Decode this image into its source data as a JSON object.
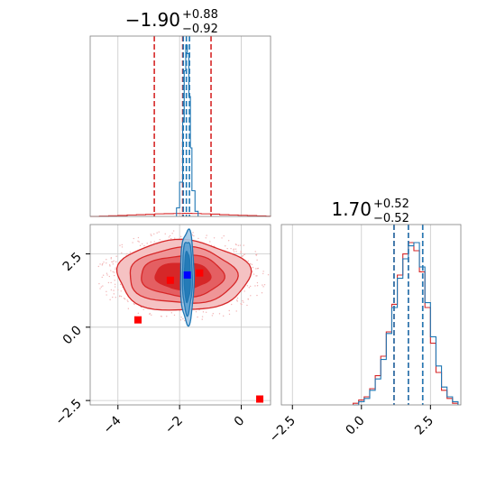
{
  "chart_data": [
    {
      "type": "histogram",
      "panel": "marginal-param-1",
      "title": {
        "median": "−1.90",
        "plus": "+0.88",
        "minus": "−0.92"
      },
      "xlim": [
        -4.9,
        0.95
      ],
      "gridlines_x": [
        -4,
        -2,
        0
      ],
      "series": [
        {
          "name": "",
          "color": "#d62728",
          "bins_x": [
            -4.9,
            -4.6,
            -4.3,
            -4.0,
            -3.7,
            -3.4,
            -3.1,
            -2.8,
            -2.5,
            -2.2,
            -1.9,
            -1.6,
            -1.3,
            -1.0,
            -0.7,
            -0.4,
            -0.1,
            0.2,
            0.5,
            0.8,
            0.95
          ],
          "heights": [
            0.0,
            0.01,
            0.02,
            0.03,
            0.045,
            0.055,
            0.065,
            0.08,
            0.085,
            0.09,
            0.095,
            0.09,
            0.08,
            0.07,
            0.055,
            0.045,
            0.035,
            0.025,
            0.015,
            0.005
          ],
          "quantile_lines": [
            -2.82,
            -1.9,
            -0.98
          ]
        },
        {
          "name": "",
          "color": "#1f77b4",
          "bins_x": [
            -2.1,
            -2.0,
            -1.9,
            -1.85,
            -1.8,
            -1.75,
            -1.7,
            -1.65,
            -1.6,
            -1.5,
            -1.4
          ],
          "heights": [
            0.05,
            0.2,
            0.55,
            0.85,
            1.0,
            0.95,
            0.7,
            0.4,
            0.15,
            0.03
          ],
          "quantile_lines": [
            -1.88,
            -1.78,
            -1.68
          ]
        }
      ]
    },
    {
      "type": "histogram",
      "panel": "marginal-param-2",
      "title": {
        "median": "1.70",
        "plus": "+0.52",
        "minus": "−0.52"
      },
      "xlim": [
        -2.9,
        3.6
      ],
      "xticks": [
        -2.5,
        0.0,
        2.5
      ],
      "xtick_labels": [
        "−2.5",
        "0.0",
        "2.5"
      ],
      "gridlines_x": [
        -2.5,
        0.0,
        2.5
      ],
      "series": [
        {
          "name": "",
          "color": "#d62728",
          "bins_x": [
            -0.3,
            -0.1,
            0.1,
            0.3,
            0.5,
            0.7,
            0.9,
            1.1,
            1.3,
            1.5,
            1.7,
            1.9,
            2.1,
            2.3,
            2.5,
            2.7,
            2.9,
            3.1,
            3.3,
            3.5
          ],
          "heights": [
            0.01,
            0.03,
            0.05,
            0.1,
            0.18,
            0.3,
            0.45,
            0.62,
            0.8,
            0.93,
            1.0,
            0.95,
            0.82,
            0.6,
            0.38,
            0.2,
            0.09,
            0.04,
            0.01
          ],
          "quantile_lines": [
            1.18,
            1.7,
            2.22
          ]
        },
        {
          "name": "",
          "color": "#1f77b4",
          "bins_x": [
            -0.3,
            -0.1,
            0.1,
            0.3,
            0.5,
            0.7,
            0.9,
            1.1,
            1.3,
            1.5,
            1.7,
            1.9,
            2.1,
            2.3,
            2.5,
            2.7,
            2.9,
            3.1,
            3.3,
            3.5
          ],
          "heights": [
            0.0,
            0.02,
            0.04,
            0.09,
            0.16,
            0.28,
            0.44,
            0.6,
            0.78,
            0.9,
            0.98,
            1.0,
            0.85,
            0.63,
            0.42,
            0.24,
            0.11,
            0.05,
            0.02
          ],
          "quantile_lines": [
            1.18,
            1.7,
            2.22
          ]
        }
      ]
    },
    {
      "type": "contour",
      "panel": "joint-param-1-param-2",
      "xlim": [
        -4.9,
        0.95
      ],
      "ylim": [
        -2.65,
        3.5
      ],
      "xticks": [
        -4,
        -2,
        0
      ],
      "xtick_labels": [
        "−4",
        "−2",
        "0"
      ],
      "yticks": [
        -2.5,
        0.0,
        2.5
      ],
      "ytick_labels": [
        "−2.5",
        "0.0",
        "2.5"
      ],
      "series": [
        {
          "name": "",
          "color": "#d62728",
          "center": [
            -1.9,
            1.75
          ],
          "contour_levels": [
            {
              "rx": 2.15,
              "ry": 1.2,
              "fill": "#f5c2c3"
            },
            {
              "rx": 1.75,
              "ry": 0.95,
              "fill": "#ef9597"
            },
            {
              "rx": 1.35,
              "ry": 0.7,
              "fill": "#e45f62"
            },
            {
              "rx": 0.9,
              "ry": 0.45,
              "fill": "#d62728"
            }
          ],
          "markers": [
            [
              -2.3,
              1.6
            ],
            [
              -1.35,
              1.85
            ],
            [
              -3.35,
              0.25
            ],
            [
              0.6,
              -2.45
            ]
          ]
        },
        {
          "name": "",
          "color": "#1f77b4",
          "center": [
            -1.75,
            1.72
          ],
          "contour_levels": [
            {
              "rx": 0.22,
              "ry": 1.6,
              "fill": "#9ec6e6"
            },
            {
              "rx": 0.16,
              "ry": 1.25,
              "fill": "#5a9fd2"
            },
            {
              "rx": 0.1,
              "ry": 0.85,
              "fill": "#1f77b4"
            }
          ],
          "markers": [
            [
              -1.75,
              1.78
            ]
          ]
        }
      ]
    }
  ]
}
